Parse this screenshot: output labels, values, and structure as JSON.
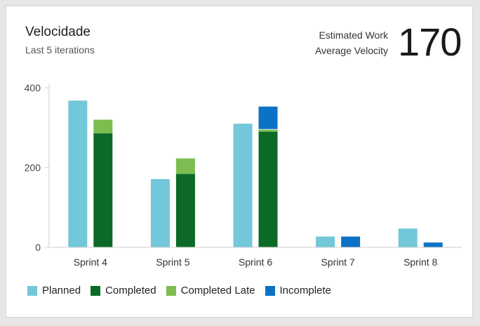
{
  "widget": {
    "title": "Velocidade",
    "subtitle": "Last 5 iterations",
    "metric_label_1": "Estimated Work",
    "metric_label_2": "Average Velocity",
    "metric_value": "170"
  },
  "colors": {
    "planned": "#72c7d9",
    "completed": "#0b6a26",
    "completed_late": "#7dbd50",
    "incomplete": "#0b72c6"
  },
  "legend": [
    {
      "name": "Planned",
      "color_key": "planned"
    },
    {
      "name": "Completed",
      "color_key": "completed"
    },
    {
      "name": "Completed Late",
      "color_key": "completed_late"
    },
    {
      "name": "Incomplete",
      "color_key": "incomplete"
    }
  ],
  "chart_data": {
    "type": "bar",
    "categories": [
      "Sprint 4",
      "Sprint 5",
      "Sprint 6",
      "Sprint 7",
      "Sprint 8"
    ],
    "yticks": [
      "0",
      "200",
      "400"
    ],
    "ylim": [
      0,
      400
    ],
    "series": [
      {
        "name": "Planned",
        "values": [
          368,
          171,
          310,
          27,
          47
        ]
      },
      {
        "name": "Completed",
        "values": [
          286,
          184,
          290,
          0,
          0
        ]
      },
      {
        "name": "Completed Late",
        "values": [
          34,
          39,
          5,
          0,
          0
        ]
      },
      {
        "name": "Incomplete",
        "values": [
          0,
          0,
          58,
          27,
          12
        ]
      }
    ],
    "grid": false,
    "legend_position": "bottom-left"
  }
}
